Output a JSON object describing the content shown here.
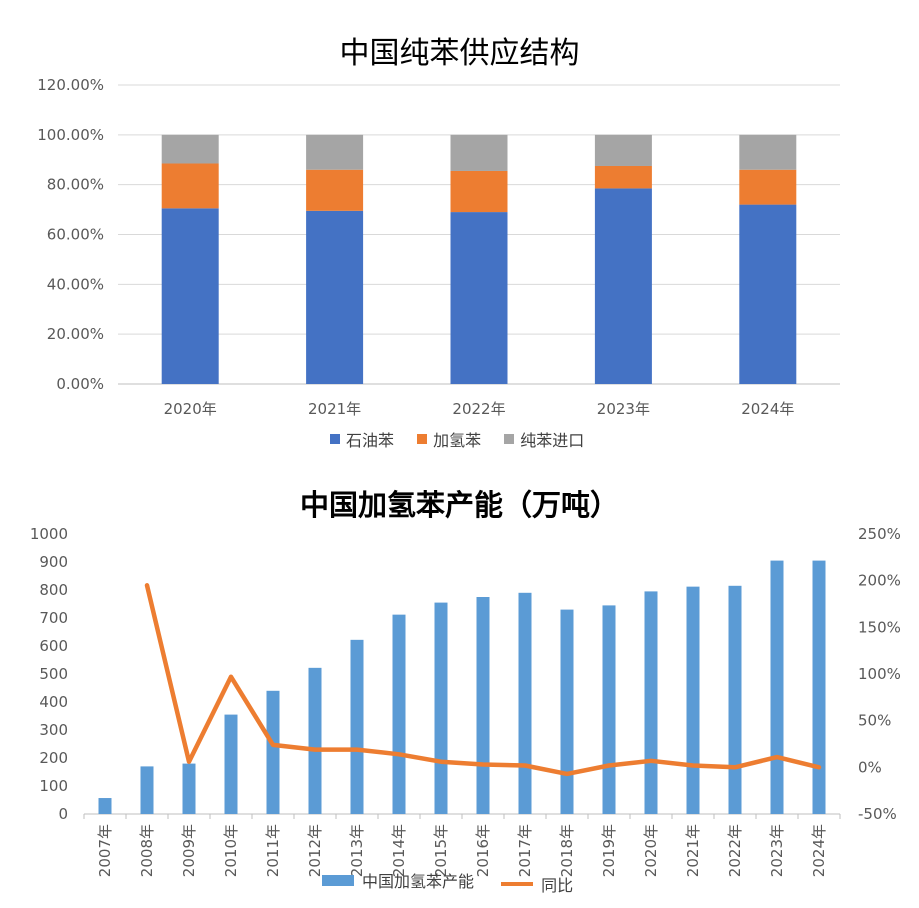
{
  "chart_data": [
    {
      "type": "bar",
      "stacked": true,
      "title": "中国纯苯供应结构",
      "categories": [
        "2020年",
        "2021年",
        "2022年",
        "2023年",
        "2024年"
      ],
      "series": [
        {
          "name": "石油苯",
          "color": "#4472C4",
          "values": [
            70.5,
            69.5,
            69.0,
            78.5,
            72.0
          ]
        },
        {
          "name": "加氢苯",
          "color": "#ED7D31",
          "values": [
            18.0,
            16.5,
            16.5,
            9.0,
            14.0
          ]
        },
        {
          "name": "纯苯进口",
          "color": "#A5A5A5",
          "values": [
            11.5,
            14.0,
            14.5,
            12.5,
            14.0
          ]
        }
      ],
      "y_ticks": [
        "0.00%",
        "20.00%",
        "40.00%",
        "60.00%",
        "80.00%",
        "100.00%",
        "120.00%"
      ],
      "ylim": [
        0,
        120
      ],
      "grid": true,
      "legend_position": "bottom"
    },
    {
      "type": "bar",
      "title": "中国加氢苯产能（万吨）",
      "categories": [
        "2007年",
        "2008年",
        "2009年",
        "2010年",
        "2011年",
        "2012年",
        "2013年",
        "2014年",
        "2015年",
        "2016年",
        "2017年",
        "2018年",
        "2019年",
        "2020年",
        "2021年",
        "2022年",
        "2023年",
        "2024年"
      ],
      "series": [
        {
          "name": "中国加氢苯产能",
          "type": "bar",
          "axis": "left",
          "color": "#5B9BD5",
          "values": [
            57,
            170,
            180,
            355,
            440,
            522,
            622,
            712,
            755,
            775,
            790,
            730,
            745,
            795,
            812,
            815,
            905,
            905
          ]
        },
        {
          "name": "同比",
          "type": "line",
          "axis": "right",
          "color": "#ED7D31",
          "values": [
            null,
            195,
            6,
            97,
            24,
            19,
            19,
            14,
            6,
            3,
            2,
            -7,
            2,
            7,
            2,
            0,
            11,
            0
          ]
        }
      ],
      "y_left_ticks": [
        "0",
        "100",
        "200",
        "300",
        "400",
        "500",
        "600",
        "700",
        "800",
        "900",
        "1000"
      ],
      "y_right_ticks": [
        "-50%",
        "0%",
        "50%",
        "100%",
        "150%",
        "200%",
        "250%"
      ],
      "ylim_left": [
        0,
        1000
      ],
      "ylim_right": [
        -50,
        250
      ],
      "grid": false,
      "legend_position": "bottom"
    }
  ]
}
